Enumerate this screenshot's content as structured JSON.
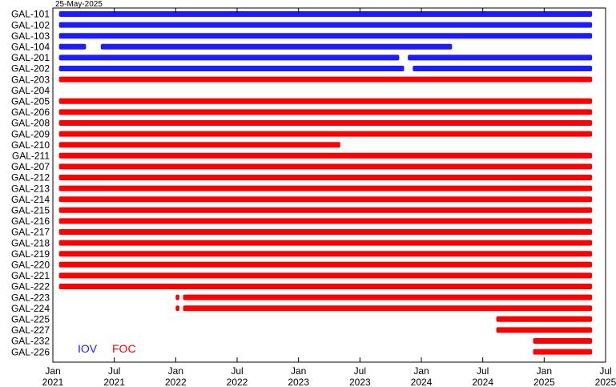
{
  "chart_data": {
    "type": "timeline",
    "date_label": "25-May-2025",
    "x_range": [
      2021.0,
      2025.5
    ],
    "x_ticks": [
      {
        "value": 2021.0,
        "line1": "Jan",
        "line2": "2021"
      },
      {
        "value": 2021.5,
        "line1": "Jul",
        "line2": "2021"
      },
      {
        "value": 2022.0,
        "line1": "Jan",
        "line2": "2022"
      },
      {
        "value": 2022.5,
        "line1": "Jul",
        "line2": "2022"
      },
      {
        "value": 2023.0,
        "line1": "Jan",
        "line2": "2023"
      },
      {
        "value": 2023.5,
        "line1": "Jul",
        "line2": "2023"
      },
      {
        "value": 2024.0,
        "line1": "Jan",
        "line2": "2024"
      },
      {
        "value": 2024.5,
        "line1": "Jul",
        "line2": "2024"
      },
      {
        "value": 2025.0,
        "line1": "Jan",
        "line2": "2025"
      },
      {
        "value": 2025.5,
        "line1": "Jul",
        "line2": "2025"
      }
    ],
    "legend": [
      {
        "label": "IOV",
        "color": "#1c1cff"
      },
      {
        "label": "FOC",
        "color": "#ff0000"
      }
    ],
    "colors": {
      "IOV": "#1c1cff",
      "FOC": "#ff0000"
    },
    "satellites": [
      {
        "name": "GAL-101",
        "group": "IOV",
        "segments": [
          [
            2021.05,
            2025.39
          ]
        ]
      },
      {
        "name": "GAL-102",
        "group": "IOV",
        "segments": [
          [
            2021.05,
            2025.39
          ]
        ]
      },
      {
        "name": "GAL-103",
        "group": "IOV",
        "segments": [
          [
            2021.05,
            2025.39
          ]
        ]
      },
      {
        "name": "GAL-104",
        "group": "IOV",
        "segments": [
          [
            2021.05,
            2021.27
          ],
          [
            2021.39,
            2024.25
          ]
        ]
      },
      {
        "name": "GAL-201",
        "group": "IOV",
        "segments": [
          [
            2021.05,
            2023.82
          ],
          [
            2023.89,
            2025.39
          ]
        ]
      },
      {
        "name": "GAL-202",
        "group": "IOV",
        "segments": [
          [
            2021.05,
            2023.86
          ],
          [
            2023.93,
            2025.39
          ]
        ]
      },
      {
        "name": "GAL-203",
        "group": "FOC",
        "segments": [
          [
            2021.05,
            2025.39
          ]
        ]
      },
      {
        "name": "GAL-204",
        "group": "FOC",
        "segments": []
      },
      {
        "name": "GAL-205",
        "group": "FOC",
        "segments": [
          [
            2021.05,
            2025.39
          ]
        ]
      },
      {
        "name": "GAL-206",
        "group": "FOC",
        "segments": [
          [
            2021.05,
            2025.39
          ]
        ]
      },
      {
        "name": "GAL-208",
        "group": "FOC",
        "segments": [
          [
            2021.05,
            2025.39
          ]
        ]
      },
      {
        "name": "GAL-209",
        "group": "FOC",
        "segments": [
          [
            2021.05,
            2025.39
          ]
        ]
      },
      {
        "name": "GAL-210",
        "group": "FOC",
        "segments": [
          [
            2021.05,
            2023.34
          ]
        ]
      },
      {
        "name": "GAL-211",
        "group": "FOC",
        "segments": [
          [
            2021.05,
            2025.39
          ]
        ]
      },
      {
        "name": "GAL-207",
        "group": "FOC",
        "segments": [
          [
            2021.05,
            2025.39
          ]
        ]
      },
      {
        "name": "GAL-212",
        "group": "FOC",
        "segments": [
          [
            2021.05,
            2025.39
          ]
        ]
      },
      {
        "name": "GAL-213",
        "group": "FOC",
        "segments": [
          [
            2021.05,
            2025.39
          ]
        ]
      },
      {
        "name": "GAL-214",
        "group": "FOC",
        "segments": [
          [
            2021.05,
            2025.39
          ]
        ]
      },
      {
        "name": "GAL-215",
        "group": "FOC",
        "segments": [
          [
            2021.05,
            2025.39
          ]
        ]
      },
      {
        "name": "GAL-216",
        "group": "FOC",
        "segments": [
          [
            2021.05,
            2025.39
          ]
        ]
      },
      {
        "name": "GAL-217",
        "group": "FOC",
        "segments": [
          [
            2021.05,
            2025.39
          ]
        ]
      },
      {
        "name": "GAL-218",
        "group": "FOC",
        "segments": [
          [
            2021.05,
            2025.39
          ]
        ]
      },
      {
        "name": "GAL-219",
        "group": "FOC",
        "segments": [
          [
            2021.05,
            2025.39
          ]
        ]
      },
      {
        "name": "GAL-220",
        "group": "FOC",
        "segments": [
          [
            2021.05,
            2025.39
          ]
        ]
      },
      {
        "name": "GAL-221",
        "group": "FOC",
        "segments": [
          [
            2021.05,
            2025.39
          ]
        ]
      },
      {
        "name": "GAL-222",
        "group": "FOC",
        "segments": [
          [
            2021.05,
            2025.39
          ]
        ]
      },
      {
        "name": "GAL-223",
        "group": "FOC",
        "segments": [
          [
            2022.0,
            2022.03
          ],
          [
            2022.06,
            2025.39
          ]
        ]
      },
      {
        "name": "GAL-224",
        "group": "FOC",
        "segments": [
          [
            2022.0,
            2022.03
          ],
          [
            2022.06,
            2025.39
          ]
        ]
      },
      {
        "name": "GAL-225",
        "group": "FOC",
        "segments": [
          [
            2024.61,
            2025.39
          ]
        ]
      },
      {
        "name": "GAL-227",
        "group": "FOC",
        "segments": [
          [
            2024.61,
            2025.39
          ]
        ]
      },
      {
        "name": "GAL-232",
        "group": "FOC",
        "segments": [
          [
            2024.91,
            2025.39
          ]
        ]
      },
      {
        "name": "GAL-226",
        "group": "FOC",
        "segments": [
          [
            2024.91,
            2025.39
          ]
        ]
      }
    ]
  }
}
